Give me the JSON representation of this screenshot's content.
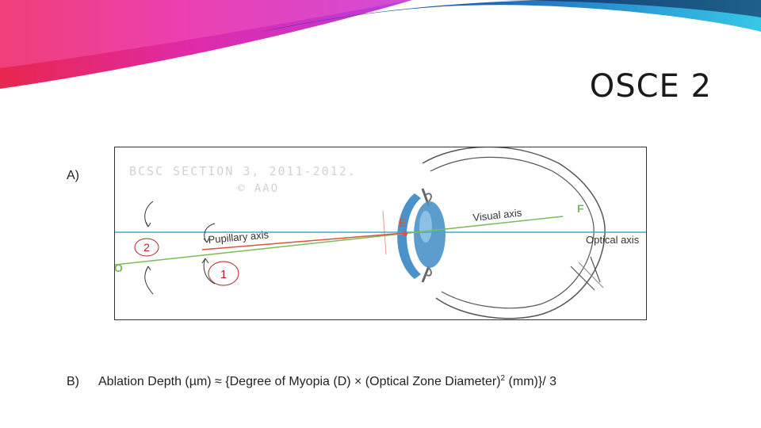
{
  "title": "OSCE 2",
  "section_a": {
    "label": "A)"
  },
  "figure": {
    "watermark_line1": "BCSC SECTION 3, 2011-2012.",
    "watermark_line2": "© AAO",
    "point_e": "E",
    "point_f": "F",
    "point_o": "O",
    "visual_axis": "Visual axis",
    "optical_axis": "Optical axis",
    "pupillary_axis": "Pupillary axis",
    "callout_1": "1",
    "callout_2": "2",
    "colors": {
      "optical": "#3fa9d0",
      "visual": "#7cbb5a",
      "pupillary": "#d9553b",
      "callout": "#b0242a",
      "lens": "#4a92c9"
    }
  },
  "section_b": {
    "label": "B)",
    "formula_before_sup": "Ablation Depth (µm) ≈ {Degree of Myopia (D) × (Optical Zone Diameter)",
    "formula_sup": "2",
    "formula_after_sup": " (mm)}/ 3"
  }
}
